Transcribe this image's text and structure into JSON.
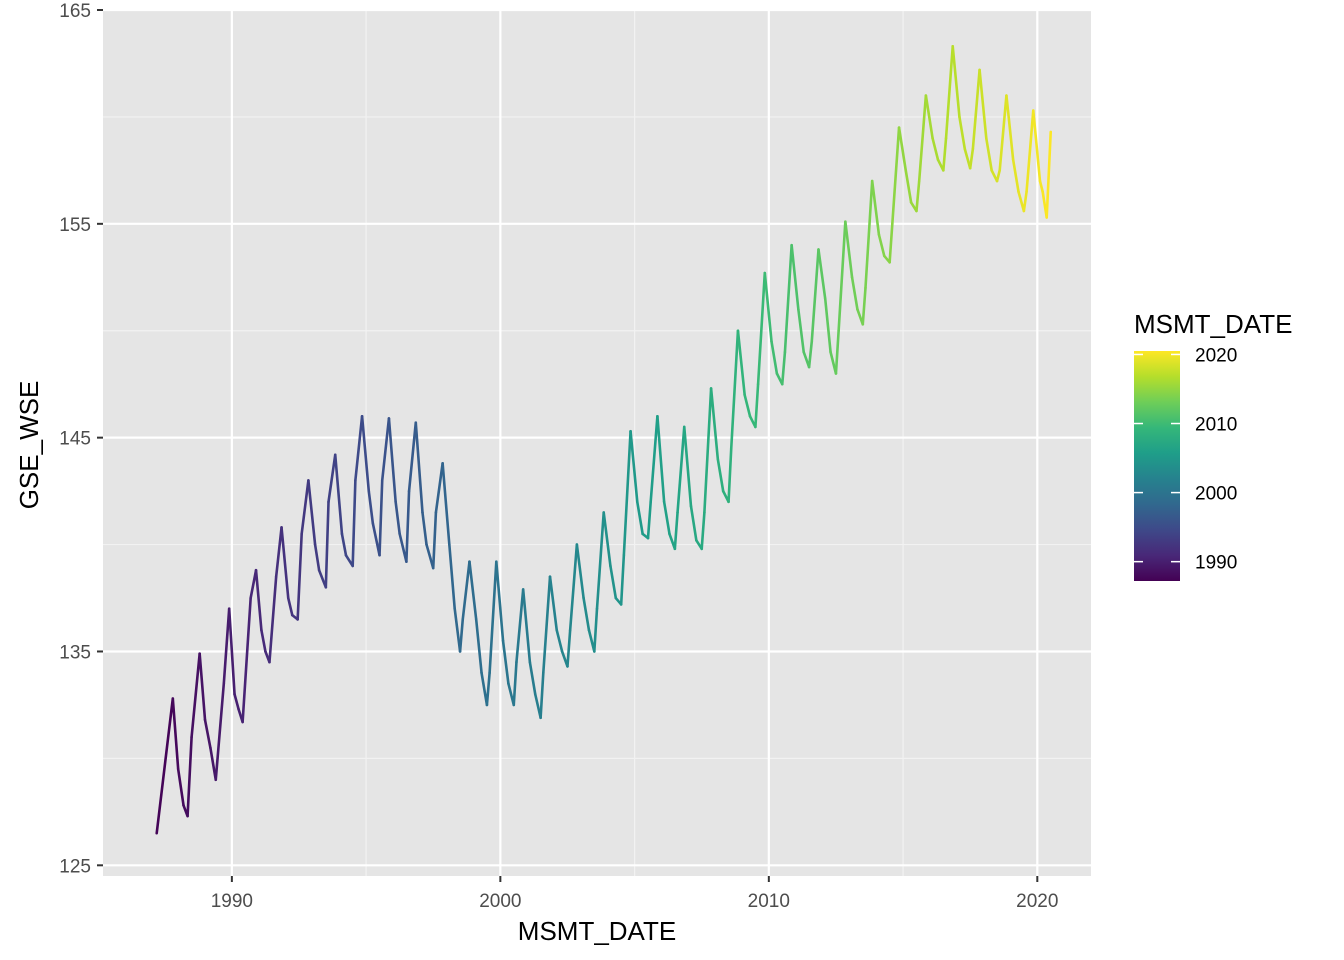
{
  "chart_data": {
    "type": "line",
    "title": "",
    "xlabel": "MSMT_DATE",
    "ylabel": "GSE_WSE",
    "xlim": [
      1985.2,
      2022.0
    ],
    "ylim": [
      124.5,
      165.0
    ],
    "x_ticks": [
      1990,
      2000,
      2010,
      2020
    ],
    "y_ticks": [
      125,
      135,
      145,
      155,
      165
    ],
    "x_tick_labels": [
      "1990",
      "2000",
      "2010",
      "2020"
    ],
    "y_tick_labels": [
      "125",
      "135",
      "145",
      "155",
      "165"
    ],
    "grid": true,
    "color_scale": {
      "name": "viridis",
      "title": "MSMT_DATE",
      "range": [
        1987.2,
        2020.5
      ],
      "ticks": [
        1990,
        2000,
        2010,
        2020
      ],
      "tick_labels": [
        "1990",
        "2000",
        "2010",
        "2020"
      ],
      "colors": [
        "#440154",
        "#482878",
        "#3e4989",
        "#31688e",
        "#26828e",
        "#1f9e89",
        "#35b779",
        "#6ece58",
        "#b5de2b",
        "#fde725"
      ]
    },
    "legend_position": "right",
    "series": [
      {
        "x": [
          1987.2,
          1987.8,
          1988.0,
          1988.2,
          1988.35,
          1988.5,
          1988.8,
          1989.0,
          1989.2,
          1989.4,
          1989.7,
          1989.9,
          1990.1,
          1990.25,
          1990.4,
          1990.7,
          1990.9,
          1991.1,
          1991.25,
          1991.4,
          1991.65,
          1991.85,
          1992.1,
          1992.25,
          1992.45,
          1992.6,
          1992.85,
          1993.1,
          1993.25,
          1993.5,
          1993.6,
          1993.85,
          1994.1,
          1994.25,
          1994.5,
          1994.6,
          1994.85,
          1995.1,
          1995.25,
          1995.5,
          1995.6,
          1995.85,
          1996.1,
          1996.25,
          1996.5,
          1996.6,
          1996.85,
          1997.1,
          1997.25,
          1997.5,
          1997.6,
          1997.85,
          1998.1,
          1998.3,
          1998.5,
          1998.6,
          1998.85,
          1999.1,
          1999.3,
          1999.5,
          1999.6,
          1999.85,
          2000.1,
          2000.3,
          2000.5,
          2000.6,
          2000.85,
          2001.1,
          2001.3,
          2001.5,
          2001.6,
          2001.85,
          2002.1,
          2002.3,
          2002.5,
          2002.6,
          2002.85,
          2003.1,
          2003.3,
          2003.5,
          2003.6,
          2003.85,
          2004.1,
          2004.3,
          2004.5,
          2004.6,
          2004.85,
          2005.1,
          2005.3,
          2005.5,
          2005.6,
          2005.85,
          2006.1,
          2006.3,
          2006.5,
          2006.6,
          2006.85,
          2007.1,
          2007.3,
          2007.5,
          2007.6,
          2007.85,
          2008.1,
          2008.3,
          2008.5,
          2008.6,
          2008.85,
          2009.1,
          2009.3,
          2009.5,
          2009.6,
          2009.85,
          2010.1,
          2010.3,
          2010.5,
          2010.6,
          2010.85,
          2011.1,
          2011.3,
          2011.5,
          2011.6,
          2011.85,
          2012.1,
          2012.3,
          2012.5,
          2012.6,
          2012.85,
          2013.1,
          2013.3,
          2013.5,
          2013.6,
          2013.85,
          2014.1,
          2014.3,
          2014.5,
          2014.6,
          2014.85,
          2015.1,
          2015.3,
          2015.5,
          2015.6,
          2015.85,
          2016.1,
          2016.3,
          2016.5,
          2016.6,
          2016.85,
          2017.1,
          2017.3,
          2017.5,
          2017.6,
          2017.85,
          2018.1,
          2018.3,
          2018.5,
          2018.6,
          2018.85,
          2019.1,
          2019.3,
          2019.5,
          2019.6,
          2019.85,
          2020.1,
          2020.2,
          2020.35,
          2020.5
        ],
        "y": [
          126.5,
          132.8,
          129.5,
          127.8,
          127.3,
          131.0,
          134.9,
          131.8,
          130.5,
          129.0,
          133.5,
          137.0,
          133.0,
          132.3,
          131.7,
          137.5,
          138.8,
          136.0,
          135.0,
          134.5,
          138.5,
          140.8,
          137.5,
          136.7,
          136.5,
          140.5,
          143.0,
          140.0,
          138.8,
          138.0,
          142.0,
          144.2,
          140.5,
          139.5,
          139.0,
          143.0,
          146.0,
          142.5,
          141.0,
          139.5,
          143.0,
          145.9,
          142.0,
          140.5,
          139.2,
          142.5,
          145.7,
          141.5,
          140.0,
          138.9,
          141.5,
          143.8,
          140.0,
          137.0,
          135.0,
          136.5,
          139.2,
          136.5,
          134.0,
          132.5,
          134.0,
          139.2,
          135.5,
          133.5,
          132.5,
          134.5,
          137.9,
          134.5,
          133.0,
          131.9,
          134.0,
          138.5,
          136.0,
          135.0,
          134.3,
          136.0,
          140.0,
          137.5,
          136.0,
          135.0,
          137.0,
          141.5,
          139.0,
          137.5,
          137.2,
          139.5,
          145.3,
          142.0,
          140.5,
          140.3,
          142.0,
          146.0,
          142.0,
          140.5,
          139.8,
          141.5,
          145.5,
          141.8,
          140.2,
          139.8,
          141.5,
          147.3,
          144.0,
          142.5,
          142.0,
          144.5,
          150.0,
          147.0,
          146.0,
          145.5,
          147.5,
          152.7,
          149.5,
          148.0,
          147.5,
          149.0,
          154.0,
          151.0,
          149.0,
          148.3,
          149.5,
          153.8,
          151.5,
          149.0,
          148.0,
          150.0,
          155.1,
          152.5,
          151.0,
          150.3,
          152.0,
          157.0,
          154.5,
          153.5,
          153.2,
          155.0,
          159.5,
          157.5,
          156.0,
          155.6,
          157.0,
          161.0,
          159.0,
          158.0,
          157.5,
          159.0,
          163.3,
          160.0,
          158.5,
          157.6,
          158.5,
          162.2,
          159.0,
          157.5,
          157.0,
          157.5,
          161.0,
          158.0,
          156.5,
          155.6,
          156.5,
          160.3,
          157.0,
          156.5,
          155.3,
          159.3
        ]
      }
    ]
  }
}
